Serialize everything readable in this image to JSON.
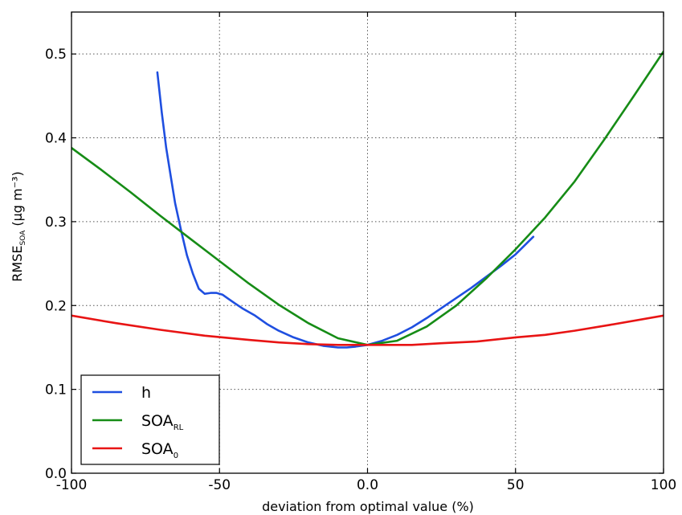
{
  "chart_data": {
    "type": "line",
    "xlabel": "deviation from optimal value (%)",
    "ylabel": {
      "main": "RMSE",
      "sub": "SOA",
      "rest": " (μg m⁻³)"
    },
    "xlim": [
      -100,
      100
    ],
    "ylim": [
      0.0,
      0.55
    ],
    "x_ticks": [
      -100,
      -50,
      0,
      50,
      100
    ],
    "x_tick_labels": [
      "-100",
      "-50",
      "0.0",
      "50",
      "100"
    ],
    "y_ticks": [
      0.0,
      0.1,
      0.2,
      0.3,
      0.4,
      0.5
    ],
    "y_tick_labels": [
      "0.0",
      "0.1",
      "0.2",
      "0.3",
      "0.4",
      "0.5"
    ],
    "grid": true,
    "legend_position": "lower-left",
    "series": [
      {
        "name": "h",
        "legend_main": "h",
        "legend_sub": "",
        "color": "#1f4fe0",
        "x": [
          -71,
          -69.5,
          -68,
          -66.5,
          -65,
          -63,
          -61,
          -59,
          -57,
          -55,
          -53,
          -51,
          -49,
          -47,
          -45,
          -42,
          -38,
          -34,
          -30,
          -25,
          -20,
          -15,
          -10,
          -7,
          -4,
          0,
          5,
          10,
          15,
          20,
          25,
          30,
          35,
          40,
          45,
          50,
          56
        ],
        "y": [
          0.478,
          0.43,
          0.388,
          0.355,
          0.322,
          0.29,
          0.26,
          0.238,
          0.22,
          0.214,
          0.215,
          0.215,
          0.213,
          0.208,
          0.203,
          0.196,
          0.188,
          0.178,
          0.17,
          0.162,
          0.156,
          0.152,
          0.15,
          0.15,
          0.151,
          0.153,
          0.158,
          0.165,
          0.174,
          0.185,
          0.197,
          0.209,
          0.221,
          0.234,
          0.247,
          0.261,
          0.282
        ]
      },
      {
        "name": "SOA_RL",
        "legend_main": "SOA",
        "legend_sub": "RL",
        "color": "#168c16",
        "x": [
          -100,
          -90,
          -80,
          -70,
          -60,
          -50,
          -40,
          -30,
          -20,
          -10,
          0,
          10,
          20,
          30,
          40,
          50,
          60,
          70,
          80,
          90,
          100
        ],
        "y": [
          0.388,
          0.362,
          0.335,
          0.307,
          0.28,
          0.253,
          0.226,
          0.201,
          0.179,
          0.161,
          0.153,
          0.158,
          0.175,
          0.2,
          0.232,
          0.267,
          0.305,
          0.348,
          0.398,
          0.45,
          0.503
        ]
      },
      {
        "name": "SOA_0",
        "legend_main": "SOA",
        "legend_sub": "0",
        "color": "#e81414",
        "x": [
          -100,
          -85,
          -70,
          -55,
          -40,
          -30,
          -20,
          -10,
          0,
          15,
          25,
          37,
          50,
          60,
          70,
          82,
          100
        ],
        "y": [
          0.188,
          0.179,
          0.171,
          0.164,
          0.159,
          0.156,
          0.154,
          0.153,
          0.153,
          0.153,
          0.155,
          0.157,
          0.162,
          0.165,
          0.17,
          0.177,
          0.188
        ]
      }
    ]
  }
}
